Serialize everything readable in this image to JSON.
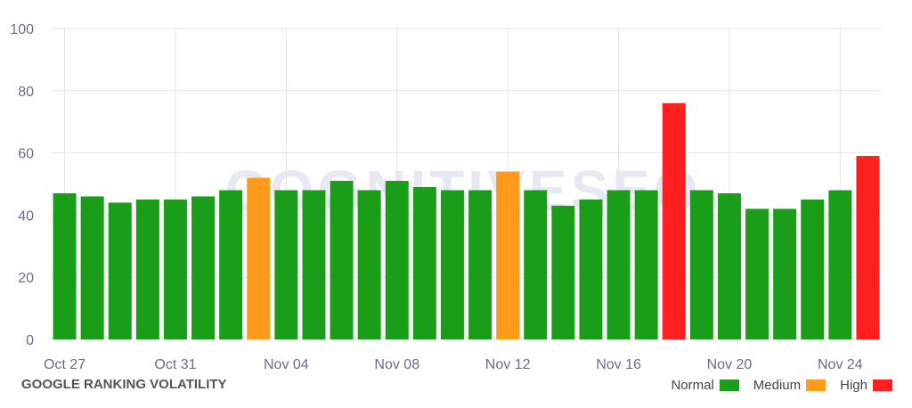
{
  "chart_data": {
    "type": "bar",
    "title": "GOOGLE RANKING VOLATILITY",
    "watermark": "COGNITIVESEO",
    "xlabel": "",
    "ylabel": "",
    "ylim": [
      0,
      100
    ],
    "yticks": [
      0,
      20,
      40,
      60,
      80,
      100
    ],
    "grid": true,
    "legend_position": "bottom-right",
    "categories": [
      "Oct 27",
      "Oct 28",
      "Oct 29",
      "Oct 30",
      "Oct 31",
      "Nov 01",
      "Nov 02",
      "Nov 03",
      "Nov 04",
      "Nov 05",
      "Nov 06",
      "Nov 07",
      "Nov 08",
      "Nov 09",
      "Nov 10",
      "Nov 11",
      "Nov 12",
      "Nov 13",
      "Nov 14",
      "Nov 15",
      "Nov 16",
      "Nov 17",
      "Nov 18",
      "Nov 19",
      "Nov 20",
      "Nov 21",
      "Nov 22",
      "Nov 23",
      "Nov 24",
      "Nov 25"
    ],
    "xtick_labels": [
      "Oct 27",
      "Oct 31",
      "Nov 04",
      "Nov 08",
      "Nov 12",
      "Nov 16",
      "Nov 20",
      "Nov 24"
    ],
    "values": [
      47,
      46,
      44,
      45,
      45,
      46,
      48,
      52,
      48,
      48,
      51,
      48,
      51,
      49,
      48,
      48,
      54,
      48,
      43,
      45,
      48,
      48,
      76,
      48,
      47,
      42,
      42,
      45,
      48,
      59
    ],
    "levels": [
      "Normal",
      "Normal",
      "Normal",
      "Normal",
      "Normal",
      "Normal",
      "Normal",
      "Medium",
      "Normal",
      "Normal",
      "Normal",
      "Normal",
      "Normal",
      "Normal",
      "Normal",
      "Normal",
      "Medium",
      "Normal",
      "Normal",
      "Normal",
      "Normal",
      "Normal",
      "High",
      "Normal",
      "Normal",
      "Normal",
      "Normal",
      "Normal",
      "Normal",
      "High"
    ],
    "legend": [
      {
        "name": "Normal",
        "color": "#1a9e1a"
      },
      {
        "name": "Medium",
        "color": "#ff9a1a"
      },
      {
        "name": "High",
        "color": "#ff1f1f"
      }
    ]
  }
}
